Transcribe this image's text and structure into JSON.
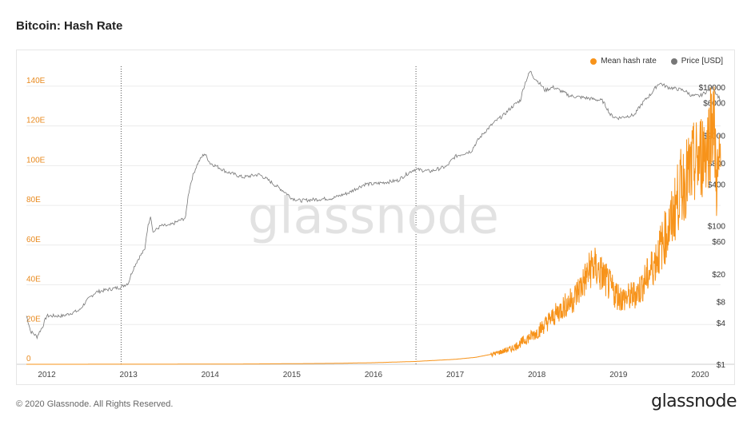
{
  "page": {
    "title": "Bitcoin: Hash Rate"
  },
  "footer": {
    "copyright": "© 2020 Glassnode. All Rights Reserved.",
    "logo": "glassnode"
  },
  "watermark": "glassnode",
  "chart_data": {
    "type": "line",
    "title": "Bitcoin: Hash Rate",
    "legend_position": "top-right",
    "grid": true,
    "x_ticks": [
      "2012",
      "2013",
      "2014",
      "2015",
      "2016",
      "2017",
      "2018",
      "2019",
      "2020"
    ],
    "xlim": [
      2011.75,
      2020.25
    ],
    "y_left": {
      "ticks": [
        "0",
        "20E",
        "40E",
        "60E",
        "80E",
        "100E",
        "120E",
        "140E"
      ],
      "tick_values": [
        0,
        20,
        40,
        60,
        80,
        100,
        120,
        140
      ],
      "ylim": [
        0,
        150
      ],
      "color": "#e8891d"
    },
    "y_right": {
      "ticks": [
        "$1",
        "$4",
        "$8",
        "$20",
        "$60",
        "$100",
        "$400",
        "$800",
        "$2000",
        "$6000",
        "$10000"
      ],
      "tick_values": [
        1,
        4,
        8,
        20,
        60,
        100,
        400,
        800,
        2000,
        6000,
        10000
      ],
      "scale": "log",
      "ylim": [
        1,
        20000
      ]
    },
    "halving_lines": [
      2012.91,
      2016.52
    ],
    "series": [
      {
        "name": "Mean hash rate",
        "axis": "left",
        "color": "#f7931a",
        "x": [
          2011.75,
          2012.0,
          2012.5,
          2013.0,
          2013.5,
          2014.0,
          2014.5,
          2015.0,
          2015.5,
          2016.0,
          2016.5,
          2017.0,
          2017.25,
          2017.5,
          2017.7,
          2017.85,
          2018.0,
          2018.15,
          2018.3,
          2018.45,
          2018.55,
          2018.62,
          2018.68,
          2018.75,
          2018.82,
          2018.88,
          2018.95,
          2019.05,
          2019.15,
          2019.25,
          2019.35,
          2019.45,
          2019.55,
          2019.65,
          2019.75,
          2019.85,
          2019.92,
          2020.0,
          2020.05,
          2020.1,
          2020.13,
          2020.16,
          2020.2,
          2020.25
        ],
        "y": [
          0.01,
          0.01,
          0.02,
          0.03,
          0.05,
          0.1,
          0.15,
          0.3,
          0.45,
          0.8,
          1.4,
          2.5,
          3.5,
          5.5,
          8,
          12,
          16,
          22,
          28,
          33,
          40,
          45,
          50,
          47,
          44,
          40,
          36,
          33,
          34,
          37,
          44,
          52,
          62,
          72,
          88,
          95,
          100,
          104,
          108,
          112,
          120,
          128,
          92,
          100
        ]
      },
      {
        "name": "Price [USD]",
        "axis": "right",
        "color": "#777777",
        "x": [
          2011.75,
          2011.8,
          2011.88,
          2011.95,
          2012.0,
          2012.2,
          2012.4,
          2012.6,
          2012.75,
          2012.91,
          2013.0,
          2013.2,
          2013.27,
          2013.3,
          2013.4,
          2013.5,
          2013.7,
          2013.85,
          2013.93,
          2014.0,
          2014.2,
          2014.4,
          2014.6,
          2014.8,
          2015.0,
          2015.1,
          2015.3,
          2015.5,
          2015.7,
          2015.9,
          2016.0,
          2016.3,
          2016.5,
          2016.52,
          2016.7,
          2016.9,
          2017.0,
          2017.2,
          2017.4,
          2017.6,
          2017.8,
          2017.92,
          2017.96,
          2018.1,
          2018.2,
          2018.4,
          2018.6,
          2018.8,
          2018.9,
          2018.95,
          2019.0,
          2019.2,
          2019.4,
          2019.5,
          2019.6,
          2019.8,
          2019.9,
          2020.0,
          2020.1,
          2020.15,
          2020.2,
          2020.25
        ],
        "y": [
          5,
          3,
          2.5,
          3.5,
          5,
          5,
          6,
          11,
          12,
          13,
          15,
          45,
          140,
          80,
          100,
          100,
          130,
          800,
          1100,
          800,
          600,
          500,
          550,
          380,
          250,
          230,
          240,
          250,
          300,
          400,
          400,
          450,
          650,
          650,
          610,
          720,
          1000,
          1200,
          2500,
          4000,
          6500,
          17000,
          14000,
          9000,
          10000,
          7500,
          7000,
          6400,
          4000,
          3700,
          3600,
          4000,
          8000,
          11500,
          10000,
          9000,
          7500,
          7500,
          9000,
          10000,
          8000,
          6500
        ]
      }
    ]
  }
}
